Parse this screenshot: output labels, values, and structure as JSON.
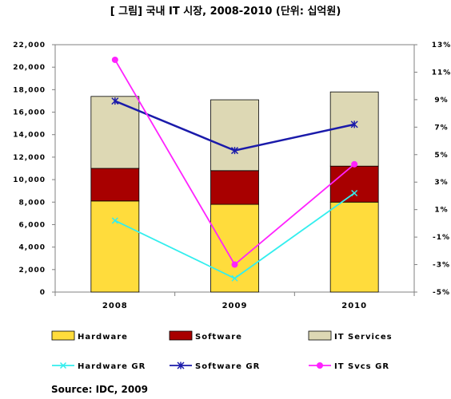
{
  "chart_data": {
    "type": "bar",
    "title": "[ 그림] 국내 IT 시장, 2008-2010 (단위: 십억원)",
    "source": "Source: IDC, 2009",
    "categories": [
      "2008",
      "2009",
      "2010"
    ],
    "stacked": true,
    "series": [
      {
        "name": "Hardware",
        "values": [
          8100,
          7800,
          8000
        ],
        "color": "#ffdc3c"
      },
      {
        "name": "Software",
        "values": [
          2900,
          3000,
          3200
        ],
        "color": "#a80000"
      },
      {
        "name": "IT Services",
        "values": [
          6400,
          6300,
          6600
        ],
        "color": "#ddd8b4"
      }
    ],
    "line_series": [
      {
        "name": "Hardware GR",
        "values": [
          0.2,
          -4.0,
          2.2
        ],
        "color": "#33eeee",
        "marker": "x"
      },
      {
        "name": "Software GR",
        "values": [
          8.9,
          5.3,
          7.2
        ],
        "color": "#1a1aaa",
        "marker": "asterisk"
      },
      {
        "name": "IT Svcs GR",
        "values": [
          11.9,
          -3.0,
          4.3
        ],
        "color": "#ff22ff",
        "marker": "circle"
      }
    ],
    "y_left": {
      "min": 0,
      "max": 22000,
      "ticks": [
        "0",
        "2,000",
        "4,000",
        "6,000",
        "8,000",
        "10,000",
        "12,000",
        "14,000",
        "16,000",
        "18,000",
        "20,000",
        "22,000"
      ]
    },
    "y_right": {
      "min": -5,
      "max": 13,
      "ticks": [
        "-5%",
        "-3%",
        "-1%",
        "1%",
        "3%",
        "5%",
        "7%",
        "9%",
        "11%",
        "13%"
      ]
    },
    "grid": false,
    "legend": "bottom"
  }
}
